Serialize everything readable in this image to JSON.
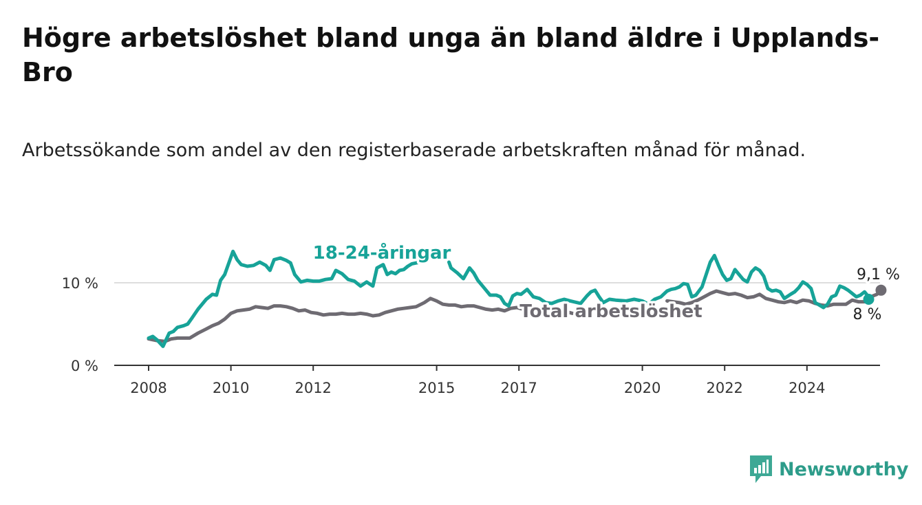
{
  "title": "Högre arbetslöshet bland unga än bland äldre i Upplands-Bro",
  "subtitle": "Arbetssökande som andel av den registerbaserade arbetskraften månad för månad.",
  "logo_text": "Newsworthy",
  "colors": {
    "youth": "#17a398",
    "total": "#6e6b72",
    "grid": "#dddddd",
    "axis": "#333333",
    "halo": "#ffffff",
    "brand": "#2d9c8a"
  },
  "chart_data": {
    "type": "line",
    "title": "Högre arbetslöshet bland unga än bland äldre i Upplands-Bro",
    "subtitle": "Arbetssökande som andel av den registerbaserade arbetskraften månad för månad.",
    "xlabel": "",
    "ylabel": "",
    "xlim": [
      2007.6,
      2025.8
    ],
    "ylim": [
      0,
      12.5
    ],
    "grid": true,
    "legend": "inline labels",
    "y_ticks": [
      0,
      10
    ],
    "y_tick_labels": [
      "0 %",
      "10 %"
    ],
    "x_ticks": [
      2008,
      2010,
      2012,
      2015,
      2017,
      2020,
      2022,
      2024
    ],
    "x_tick_labels": [
      "2008",
      "2010",
      "2012",
      "2015",
      "2017",
      "2020",
      "2022",
      "2024"
    ],
    "series": [
      {
        "name": "18-24-åringar",
        "end_label": "8 %",
        "points": [
          [
            2008.0,
            3.3
          ],
          [
            2008.1,
            3.5
          ],
          [
            2008.2,
            3.1
          ],
          [
            2008.35,
            2.3
          ],
          [
            2008.5,
            3.9
          ],
          [
            2008.6,
            4.1
          ],
          [
            2008.7,
            4.6
          ],
          [
            2008.85,
            4.8
          ],
          [
            2008.95,
            5.0
          ],
          [
            2009.05,
            5.7
          ],
          [
            2009.2,
            6.8
          ],
          [
            2009.4,
            8.0
          ],
          [
            2009.55,
            8.6
          ],
          [
            2009.65,
            8.5
          ],
          [
            2009.75,
            10.3
          ],
          [
            2009.85,
            11.0
          ],
          [
            2009.95,
            12.4
          ],
          [
            2010.05,
            13.8
          ],
          [
            2010.15,
            12.8
          ],
          [
            2010.25,
            12.2
          ],
          [
            2010.4,
            12.0
          ],
          [
            2010.55,
            12.1
          ],
          [
            2010.7,
            12.5
          ],
          [
            2010.85,
            12.1
          ],
          [
            2010.95,
            11.5
          ],
          [
            2011.05,
            12.8
          ],
          [
            2011.2,
            13.0
          ],
          [
            2011.35,
            12.7
          ],
          [
            2011.45,
            12.4
          ],
          [
            2011.55,
            11.0
          ],
          [
            2011.7,
            10.1
          ],
          [
            2011.85,
            10.3
          ],
          [
            2012.0,
            10.2
          ],
          [
            2012.15,
            10.2
          ],
          [
            2012.3,
            10.4
          ],
          [
            2012.45,
            10.5
          ],
          [
            2012.55,
            11.5
          ],
          [
            2012.7,
            11.1
          ],
          [
            2012.85,
            10.4
          ],
          [
            2013.0,
            10.2
          ],
          [
            2013.15,
            9.6
          ],
          [
            2013.3,
            10.1
          ],
          [
            2013.45,
            9.6
          ],
          [
            2013.55,
            11.8
          ],
          [
            2013.7,
            12.2
          ],
          [
            2013.8,
            11.0
          ],
          [
            2013.9,
            11.3
          ],
          [
            2014.0,
            11.1
          ],
          [
            2014.1,
            11.5
          ],
          [
            2014.2,
            11.6
          ],
          [
            2014.3,
            12.0
          ],
          [
            2014.4,
            12.3
          ],
          [
            2014.5,
            12.4
          ],
          [
            2014.6,
            12.5
          ],
          [
            2015.3,
            12.5
          ],
          [
            2015.35,
            11.8
          ],
          [
            2015.5,
            11.2
          ],
          [
            2015.65,
            10.5
          ],
          [
            2015.8,
            11.8
          ],
          [
            2015.9,
            11.2
          ],
          [
            2016.0,
            10.3
          ],
          [
            2016.15,
            9.4
          ],
          [
            2016.3,
            8.5
          ],
          [
            2016.45,
            8.5
          ],
          [
            2016.55,
            8.3
          ],
          [
            2016.65,
            7.5
          ],
          [
            2016.75,
            7.2
          ],
          [
            2016.85,
            8.4
          ],
          [
            2016.95,
            8.7
          ],
          [
            2017.05,
            8.6
          ],
          [
            2017.2,
            9.2
          ],
          [
            2017.35,
            8.3
          ],
          [
            2017.5,
            8.1
          ],
          [
            2017.65,
            7.6
          ],
          [
            2017.8,
            7.5
          ],
          [
            2017.95,
            7.8
          ],
          [
            2018.1,
            8.0
          ],
          [
            2018.25,
            7.8
          ],
          [
            2018.5,
            7.5
          ],
          [
            2018.65,
            8.4
          ],
          [
            2018.75,
            8.9
          ],
          [
            2018.85,
            9.1
          ],
          [
            2018.95,
            8.3
          ],
          [
            2019.05,
            7.6
          ],
          [
            2019.2,
            8.0
          ],
          [
            2019.35,
            7.9
          ],
          [
            2019.6,
            7.8
          ],
          [
            2019.8,
            8.0
          ],
          [
            2020.0,
            7.8
          ],
          [
            2020.15,
            7.4
          ],
          [
            2020.3,
            8.0
          ],
          [
            2020.45,
            8.3
          ],
          [
            2020.6,
            9.0
          ],
          [
            2020.7,
            9.2
          ],
          [
            2020.8,
            9.3
          ],
          [
            2020.9,
            9.5
          ],
          [
            2021.0,
            9.9
          ],
          [
            2021.1,
            9.8
          ],
          [
            2021.2,
            8.3
          ],
          [
            2021.3,
            8.5
          ],
          [
            2021.45,
            9.5
          ],
          [
            2021.55,
            11.0
          ],
          [
            2021.65,
            12.5
          ],
          [
            2021.75,
            13.3
          ],
          [
            2021.85,
            12.1
          ],
          [
            2021.95,
            11.0
          ],
          [
            2022.05,
            10.3
          ],
          [
            2022.15,
            10.5
          ],
          [
            2022.25,
            11.6
          ],
          [
            2022.35,
            11.0
          ],
          [
            2022.45,
            10.4
          ],
          [
            2022.55,
            10.1
          ],
          [
            2022.65,
            11.3
          ],
          [
            2022.75,
            11.8
          ],
          [
            2022.85,
            11.5
          ],
          [
            2022.95,
            10.8
          ],
          [
            2023.05,
            9.3
          ],
          [
            2023.15,
            9.0
          ],
          [
            2023.25,
            9.1
          ],
          [
            2023.35,
            8.9
          ],
          [
            2023.45,
            8.1
          ],
          [
            2023.6,
            8.6
          ],
          [
            2023.7,
            8.9
          ],
          [
            2023.8,
            9.4
          ],
          [
            2023.9,
            10.1
          ],
          [
            2024.0,
            9.8
          ],
          [
            2024.1,
            9.3
          ],
          [
            2024.2,
            7.6
          ],
          [
            2024.3,
            7.3
          ],
          [
            2024.4,
            7.0
          ],
          [
            2024.5,
            7.4
          ],
          [
            2024.6,
            8.3
          ],
          [
            2024.7,
            8.5
          ],
          [
            2024.8,
            9.6
          ],
          [
            2024.9,
            9.4
          ],
          [
            2025.0,
            9.1
          ],
          [
            2025.1,
            8.7
          ],
          [
            2025.2,
            8.3
          ],
          [
            2025.3,
            8.5
          ],
          [
            2025.4,
            8.9
          ],
          [
            2025.45,
            8.6
          ],
          [
            2025.5,
            8.0
          ]
        ]
      },
      {
        "name": "Total arbetslöshet",
        "end_label": "9,1 %",
        "points": [
          [
            2008.0,
            3.2
          ],
          [
            2008.2,
            3.0
          ],
          [
            2008.4,
            2.9
          ],
          [
            2008.55,
            3.2
          ],
          [
            2008.7,
            3.3
          ],
          [
            2008.85,
            3.3
          ],
          [
            2009.0,
            3.3
          ],
          [
            2009.2,
            3.9
          ],
          [
            2009.4,
            4.4
          ],
          [
            2009.55,
            4.8
          ],
          [
            2009.7,
            5.1
          ],
          [
            2009.85,
            5.6
          ],
          [
            2010.0,
            6.3
          ],
          [
            2010.15,
            6.6
          ],
          [
            2010.3,
            6.7
          ],
          [
            2010.45,
            6.8
          ],
          [
            2010.6,
            7.1
          ],
          [
            2010.75,
            7.0
          ],
          [
            2010.9,
            6.9
          ],
          [
            2011.05,
            7.2
          ],
          [
            2011.2,
            7.2
          ],
          [
            2011.35,
            7.1
          ],
          [
            2011.5,
            6.9
          ],
          [
            2011.65,
            6.6
          ],
          [
            2011.8,
            6.7
          ],
          [
            2011.95,
            6.4
          ],
          [
            2012.1,
            6.3
          ],
          [
            2012.25,
            6.1
          ],
          [
            2012.4,
            6.2
          ],
          [
            2012.55,
            6.2
          ],
          [
            2012.7,
            6.3
          ],
          [
            2012.85,
            6.2
          ],
          [
            2013.0,
            6.2
          ],
          [
            2013.15,
            6.3
          ],
          [
            2013.3,
            6.2
          ],
          [
            2013.45,
            6.0
          ],
          [
            2013.6,
            6.1
          ],
          [
            2013.75,
            6.4
          ],
          [
            2013.9,
            6.6
          ],
          [
            2014.05,
            6.8
          ],
          [
            2014.2,
            6.9
          ],
          [
            2014.35,
            7.0
          ],
          [
            2014.5,
            7.1
          ],
          [
            2014.7,
            7.6
          ],
          [
            2014.85,
            8.1
          ],
          [
            2015.0,
            7.8
          ],
          [
            2015.15,
            7.4
          ],
          [
            2015.3,
            7.3
          ],
          [
            2015.45,
            7.3
          ],
          [
            2015.6,
            7.1
          ],
          [
            2015.75,
            7.2
          ],
          [
            2015.9,
            7.2
          ],
          [
            2016.05,
            7.0
          ],
          [
            2016.2,
            6.8
          ],
          [
            2016.35,
            6.7
          ],
          [
            2016.5,
            6.8
          ],
          [
            2016.65,
            6.6
          ],
          [
            2016.8,
            6.9
          ],
          [
            2016.95,
            7.0
          ],
          [
            2017.1,
            6.8
          ],
          [
            2017.25,
            6.6
          ],
          [
            2017.4,
            6.3
          ],
          [
            2017.55,
            6.1
          ],
          [
            2017.7,
            6.3
          ],
          [
            2017.85,
            6.6
          ],
          [
            2018.0,
            6.6
          ],
          [
            2018.15,
            6.5
          ],
          [
            2018.3,
            6.3
          ],
          [
            2020.6,
            7.8
          ],
          [
            2020.75,
            7.7
          ],
          [
            2020.9,
            7.6
          ],
          [
            2021.05,
            7.4
          ],
          [
            2021.2,
            7.6
          ],
          [
            2021.35,
            7.9
          ],
          [
            2021.5,
            8.3
          ],
          [
            2021.65,
            8.7
          ],
          [
            2021.8,
            9.0
          ],
          [
            2021.95,
            8.8
          ],
          [
            2022.1,
            8.6
          ],
          [
            2022.25,
            8.7
          ],
          [
            2022.4,
            8.5
          ],
          [
            2022.55,
            8.2
          ],
          [
            2022.7,
            8.3
          ],
          [
            2022.85,
            8.6
          ],
          [
            2023.0,
            8.1
          ],
          [
            2023.15,
            7.9
          ],
          [
            2023.3,
            7.7
          ],
          [
            2023.45,
            7.6
          ],
          [
            2023.6,
            7.8
          ],
          [
            2023.75,
            7.6
          ],
          [
            2023.9,
            7.9
          ],
          [
            2024.05,
            7.8
          ],
          [
            2024.2,
            7.5
          ],
          [
            2024.35,
            7.3
          ],
          [
            2024.5,
            7.2
          ],
          [
            2024.65,
            7.4
          ],
          [
            2024.8,
            7.4
          ],
          [
            2024.95,
            7.4
          ],
          [
            2025.1,
            7.9
          ],
          [
            2025.25,
            7.7
          ],
          [
            2025.4,
            7.7
          ],
          [
            2025.55,
            8.3
          ],
          [
            2025.7,
            8.6
          ],
          [
            2025.8,
            9.1
          ]
        ]
      }
    ]
  }
}
